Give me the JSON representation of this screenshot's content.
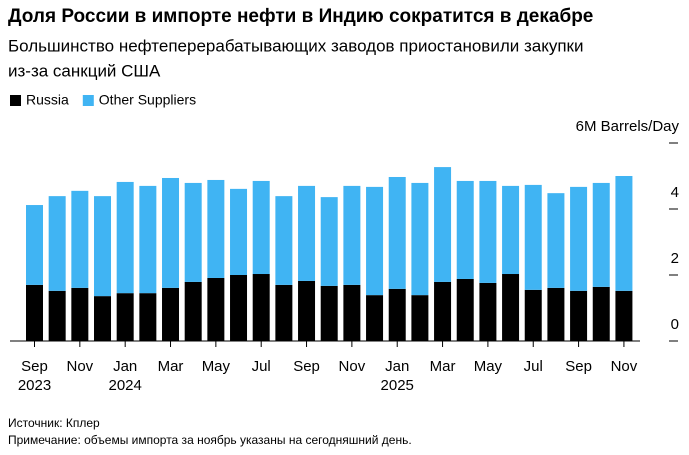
{
  "chart_data": {
    "type": "bar",
    "stacked": true,
    "title": "Доля России в импорте нефти в Индию сократится в декабре",
    "subtitle": [
      "Большинство нефтеперерабатывающих заводов приостановили закупки",
      "из-за санкций США"
    ],
    "categories": [
      "Sep",
      null,
      "Nov",
      null,
      "Jan",
      null,
      "Mar",
      null,
      "May",
      null,
      "Jul",
      null,
      "Sep",
      null,
      "Nov",
      null,
      "Jan",
      null,
      "Mar",
      null,
      "May",
      null,
      "Jul",
      null,
      "Sep",
      null,
      "Nov"
    ],
    "category_years": [
      "2023",
      null,
      null,
      null,
      "2024",
      null,
      null,
      null,
      null,
      null,
      null,
      null,
      null,
      null,
      null,
      null,
      "2025",
      null,
      null,
      null,
      null,
      null,
      null,
      null,
      null,
      null,
      null
    ],
    "series": [
      {
        "name": "Russia",
        "color": "#000000",
        "values": [
          1.7,
          1.52,
          1.61,
          1.36,
          1.45,
          1.45,
          1.61,
          1.79,
          1.91,
          2.0,
          2.03,
          1.7,
          1.82,
          1.67,
          1.7,
          1.39,
          1.58,
          1.39,
          1.79,
          1.88,
          1.76,
          2.03,
          1.55,
          1.61,
          1.52,
          1.64,
          1.52
        ]
      },
      {
        "name": "Other Suppliers",
        "color": "#40b4f3",
        "values": [
          2.42,
          2.87,
          2.94,
          3.03,
          3.37,
          3.25,
          3.33,
          3.0,
          2.97,
          2.61,
          2.82,
          2.69,
          2.88,
          2.69,
          3.0,
          3.28,
          3.39,
          3.4,
          3.48,
          2.97,
          3.09,
          2.67,
          3.18,
          2.87,
          3.15,
          3.15,
          3.48
        ]
      }
    ],
    "ylim": [
      0,
      6
    ],
    "yticks": [
      0,
      2,
      4,
      {
        "value": 6,
        "label": "6M Barrels/Day"
      }
    ],
    "source": "Источник: Кплер",
    "note": "Примечание: объемы импорта за ноябрь указаны на сегодняшний день."
  }
}
